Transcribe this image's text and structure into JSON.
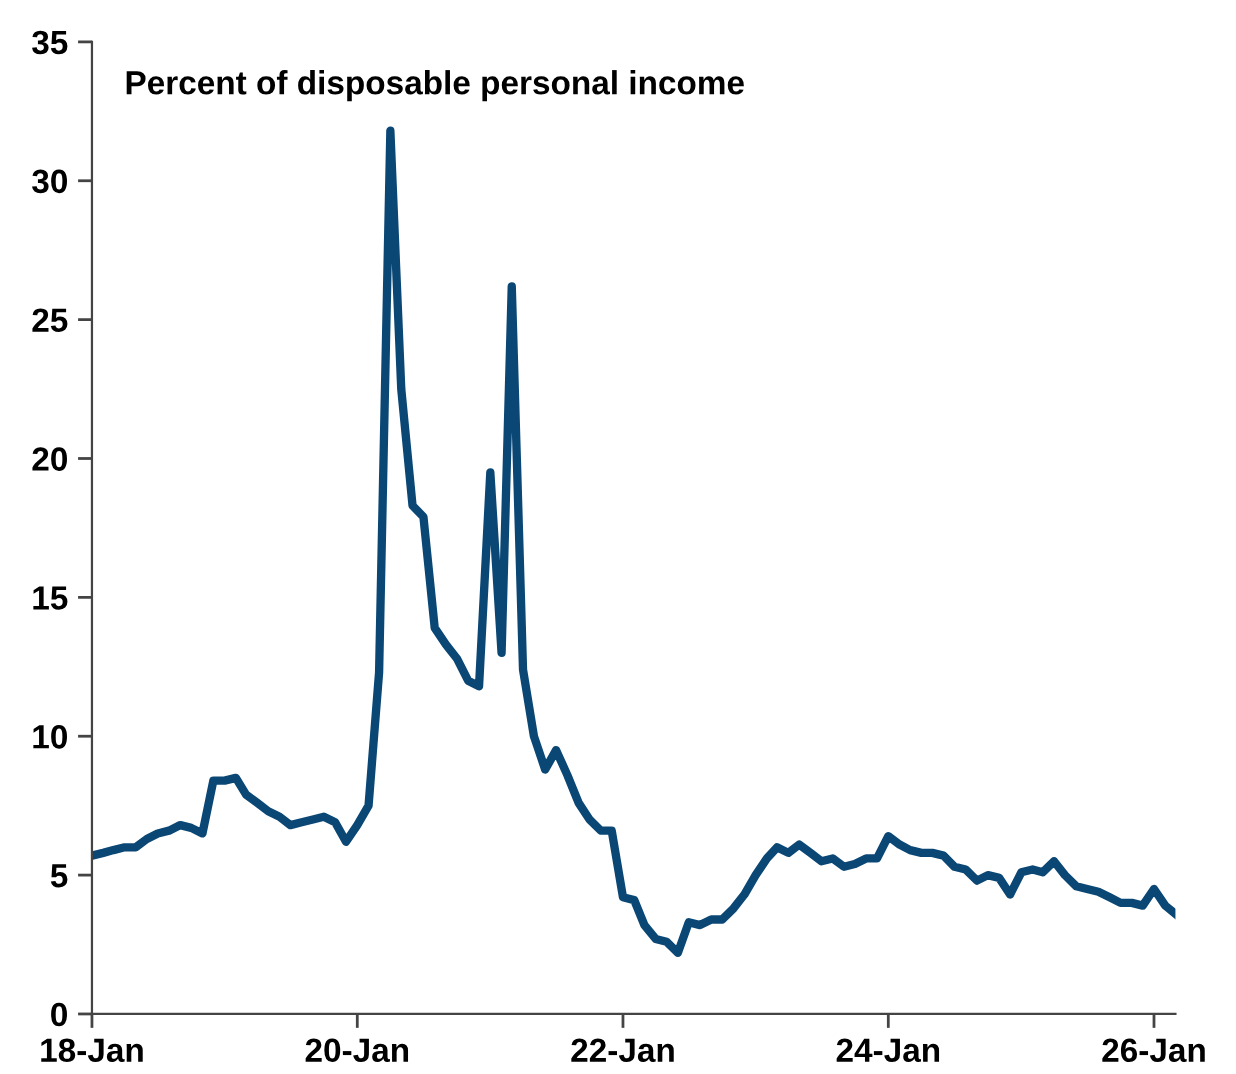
{
  "chart_data": {
    "type": "line",
    "title": "Percent of disposable personal income",
    "x": [
      "2018-01",
      "2018-02",
      "2018-03",
      "2018-04",
      "2018-05",
      "2018-06",
      "2018-07",
      "2018-08",
      "2018-09",
      "2018-10",
      "2018-11",
      "2018-12",
      "2019-01",
      "2019-02",
      "2019-03",
      "2019-04",
      "2019-05",
      "2019-06",
      "2019-07",
      "2019-08",
      "2019-09",
      "2019-10",
      "2019-11",
      "2019-12",
      "2020-01",
      "2020-02",
      "2020-03",
      "2020-04",
      "2020-05",
      "2020-06",
      "2020-07",
      "2020-08",
      "2020-09",
      "2020-10",
      "2020-11",
      "2020-12",
      "2021-01",
      "2021-02",
      "2021-03",
      "2021-04",
      "2021-05",
      "2021-06",
      "2021-07",
      "2021-08",
      "2021-09",
      "2021-10",
      "2021-11",
      "2021-12",
      "2022-01",
      "2022-02",
      "2022-03",
      "2022-04",
      "2022-05",
      "2022-06",
      "2022-07",
      "2022-08",
      "2022-09",
      "2022-10",
      "2022-11",
      "2022-12",
      "2023-01",
      "2023-02",
      "2023-03",
      "2023-04",
      "2023-05",
      "2023-06",
      "2023-07",
      "2023-08",
      "2023-09",
      "2023-10",
      "2023-11",
      "2023-12",
      "2024-01",
      "2024-02",
      "2024-03",
      "2024-04",
      "2024-05",
      "2024-06",
      "2024-07",
      "2024-08",
      "2024-09",
      "2024-10",
      "2024-11",
      "2024-12",
      "2025-01",
      "2025-02",
      "2025-03",
      "2025-04",
      "2025-05",
      "2025-06",
      "2025-07",
      "2025-08",
      "2025-09",
      "2025-10",
      "2025-11",
      "2025-12",
      "2026-01",
      "2026-02",
      "2026-03"
    ],
    "series": [
      {
        "color": "#0b4775",
        "values": [
          5.7,
          5.8,
          5.9,
          6.0,
          6.0,
          6.3,
          6.5,
          6.6,
          6.8,
          6.7,
          6.5,
          8.4,
          8.4,
          8.5,
          7.9,
          7.6,
          7.3,
          7.1,
          6.8,
          6.9,
          7.0,
          7.1,
          6.9,
          6.2,
          6.8,
          7.5,
          12.3,
          31.8,
          22.5,
          18.3,
          17.9,
          13.9,
          13.3,
          12.8,
          12.0,
          11.8,
          19.5,
          13.0,
          26.2,
          12.4,
          10.0,
          8.8,
          9.5,
          8.6,
          7.6,
          7.0,
          6.6,
          6.6,
          4.2,
          4.1,
          3.2,
          2.7,
          2.6,
          2.2,
          3.3,
          3.2,
          3.4,
          3.4,
          3.8,
          4.3,
          5.0,
          5.6,
          6.0,
          5.8,
          6.1,
          5.8,
          5.5,
          5.6,
          5.3,
          5.4,
          5.6,
          5.6,
          6.4,
          6.1,
          5.9,
          5.8,
          5.8,
          5.7,
          5.3,
          5.2,
          4.8,
          5.0,
          4.9,
          4.3,
          5.1,
          5.2,
          5.1,
          5.5,
          5.0,
          4.6,
          4.5,
          4.4,
          4.2,
          4.0,
          4.0,
          3.9,
          4.5,
          3.9,
          3.6
        ]
      }
    ],
    "xlim": [
      "2018-01",
      "2026-03"
    ],
    "xticks": [
      {
        "value": "2018-01",
        "label": "18-Jan"
      },
      {
        "value": "2020-01",
        "label": "20-Jan"
      },
      {
        "value": "2022-01",
        "label": "22-Jan"
      },
      {
        "value": "2024-01",
        "label": "24-Jan"
      },
      {
        "value": "2026-01",
        "label": "26-Jan"
      }
    ],
    "ylim": [
      0,
      35
    ],
    "yticks": [
      0,
      5,
      10,
      15,
      20,
      25,
      30,
      35
    ],
    "grid": false,
    "marker": "none",
    "line_style": "solid"
  }
}
